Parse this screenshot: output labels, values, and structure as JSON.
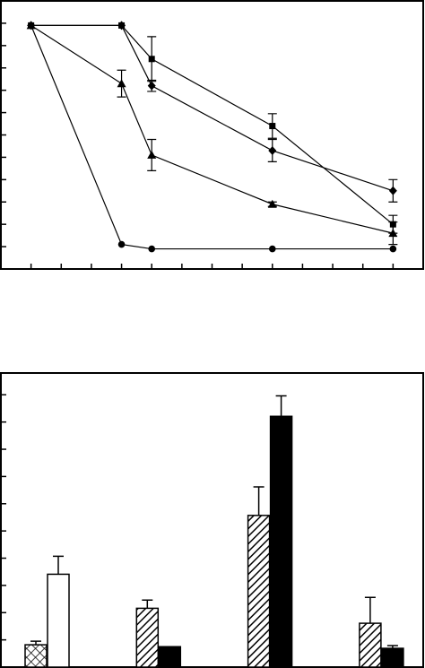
{
  "chart_data": [
    {
      "type": "line",
      "x": [
        0,
        3,
        4,
        8,
        12
      ],
      "xlim": [
        -1,
        13
      ],
      "xticks": [
        0,
        1,
        2,
        3,
        4,
        5,
        6,
        7,
        8,
        9,
        10,
        11,
        12
      ],
      "ylim": [
        0,
        12
      ],
      "yticks": [
        1,
        2,
        3,
        4,
        5,
        6,
        7,
        8,
        9,
        10,
        11
      ],
      "series": [
        {
          "marker": "square",
          "color": "#000000",
          "values": [
            10.9,
            10.9,
            9.4,
            6.4,
            2.0
          ],
          "errors": [
            0,
            0,
            1.0,
            0.55,
            0.4
          ]
        },
        {
          "marker": "diamond",
          "color": "#000000",
          "values": [
            10.9,
            10.9,
            8.2,
            5.3,
            3.5
          ],
          "errors": [
            0,
            0,
            0.25,
            0.5,
            0.5
          ]
        },
        {
          "marker": "triangle",
          "color": "#000000",
          "values": [
            10.9,
            8.3,
            5.1,
            2.9,
            1.6
          ],
          "errors": [
            0,
            0.6,
            0.7,
            0.1,
            0.5
          ]
        },
        {
          "marker": "circle",
          "color": "#000000",
          "values": [
            10.9,
            1.1,
            0.9,
            0.9,
            0.9
          ],
          "errors": [
            0,
            0,
            0,
            0,
            0
          ]
        }
      ]
    },
    {
      "type": "bar",
      "categories": [
        null,
        null,
        null,
        null
      ],
      "ylim": [
        0,
        10.8
      ],
      "yticks": [
        0,
        1,
        2,
        3,
        4,
        5,
        6,
        7,
        8,
        9,
        10
      ],
      "series": [
        {
          "pattern": "crosshatch",
          "color": "#000000",
          "values": [
            0.82,
            null,
            null,
            null
          ],
          "errors": [
            0.13,
            null,
            null,
            null
          ]
        },
        {
          "pattern": "none",
          "color": "#ffffff",
          "values": [
            3.41,
            null,
            null,
            null
          ],
          "errors": [
            0.66,
            null,
            null,
            null
          ]
        },
        {
          "pattern": "hatch",
          "color": "#000000",
          "values": [
            null,
            2.16,
            5.57,
            1.61
          ],
          "errors": [
            null,
            0.3,
            1.05,
            0.95
          ]
        },
        {
          "pattern": "solid",
          "color": "#000000",
          "values": [
            null,
            0.75,
            9.21,
            0.69
          ],
          "errors": [
            null,
            0,
            0.75,
            0.1
          ]
        }
      ]
    }
  ]
}
